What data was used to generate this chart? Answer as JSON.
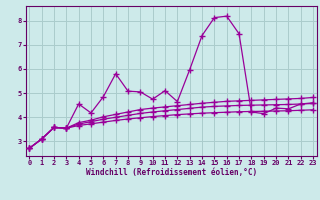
{
  "xlabel": "Windchill (Refroidissement éolien,°C)",
  "bg_color": "#cdeaea",
  "grid_color": "#aacccc",
  "line_color": "#990099",
  "spine_color": "#660066",
  "tick_color": "#660066",
  "label_color": "#660066",
  "x_values": [
    0,
    1,
    2,
    3,
    4,
    5,
    6,
    7,
    8,
    9,
    10,
    11,
    12,
    13,
    14,
    15,
    16,
    17,
    18,
    19,
    20,
    21,
    22,
    23
  ],
  "series": {
    "s1": [
      2.72,
      3.1,
      3.58,
      3.55,
      4.55,
      4.18,
      4.85,
      5.8,
      5.08,
      5.05,
      4.75,
      5.1,
      4.65,
      5.97,
      7.38,
      8.12,
      8.18,
      7.45,
      4.22,
      4.15,
      4.38,
      4.35,
      4.55,
      4.6
    ],
    "s2": [
      2.72,
      3.1,
      3.58,
      3.55,
      3.78,
      3.88,
      4.02,
      4.12,
      4.22,
      4.32,
      4.38,
      4.43,
      4.48,
      4.53,
      4.58,
      4.62,
      4.66,
      4.68,
      4.7,
      4.72,
      4.74,
      4.76,
      4.78,
      4.82
    ],
    "s3": [
      2.72,
      3.1,
      3.58,
      3.55,
      3.72,
      3.82,
      3.92,
      4.0,
      4.08,
      4.16,
      4.22,
      4.27,
      4.32,
      4.37,
      4.42,
      4.45,
      4.47,
      4.49,
      4.5,
      4.51,
      4.52,
      4.53,
      4.55,
      4.57
    ],
    "s4": [
      2.72,
      3.1,
      3.58,
      3.55,
      3.66,
      3.73,
      3.8,
      3.87,
      3.93,
      3.98,
      4.03,
      4.07,
      4.11,
      4.14,
      4.17,
      4.19,
      4.21,
      4.23,
      4.24,
      4.25,
      4.26,
      4.27,
      4.29,
      4.31
    ]
  },
  "xlim": [
    -0.3,
    23.3
  ],
  "ylim": [
    2.4,
    8.6
  ],
  "yticks": [
    3,
    4,
    5,
    6,
    7,
    8
  ],
  "xticks": [
    0,
    1,
    2,
    3,
    4,
    5,
    6,
    7,
    8,
    9,
    10,
    11,
    12,
    13,
    14,
    15,
    16,
    17,
    18,
    19,
    20,
    21,
    22,
    23
  ],
  "marker": "+",
  "markersize": 4,
  "linewidth": 0.9
}
